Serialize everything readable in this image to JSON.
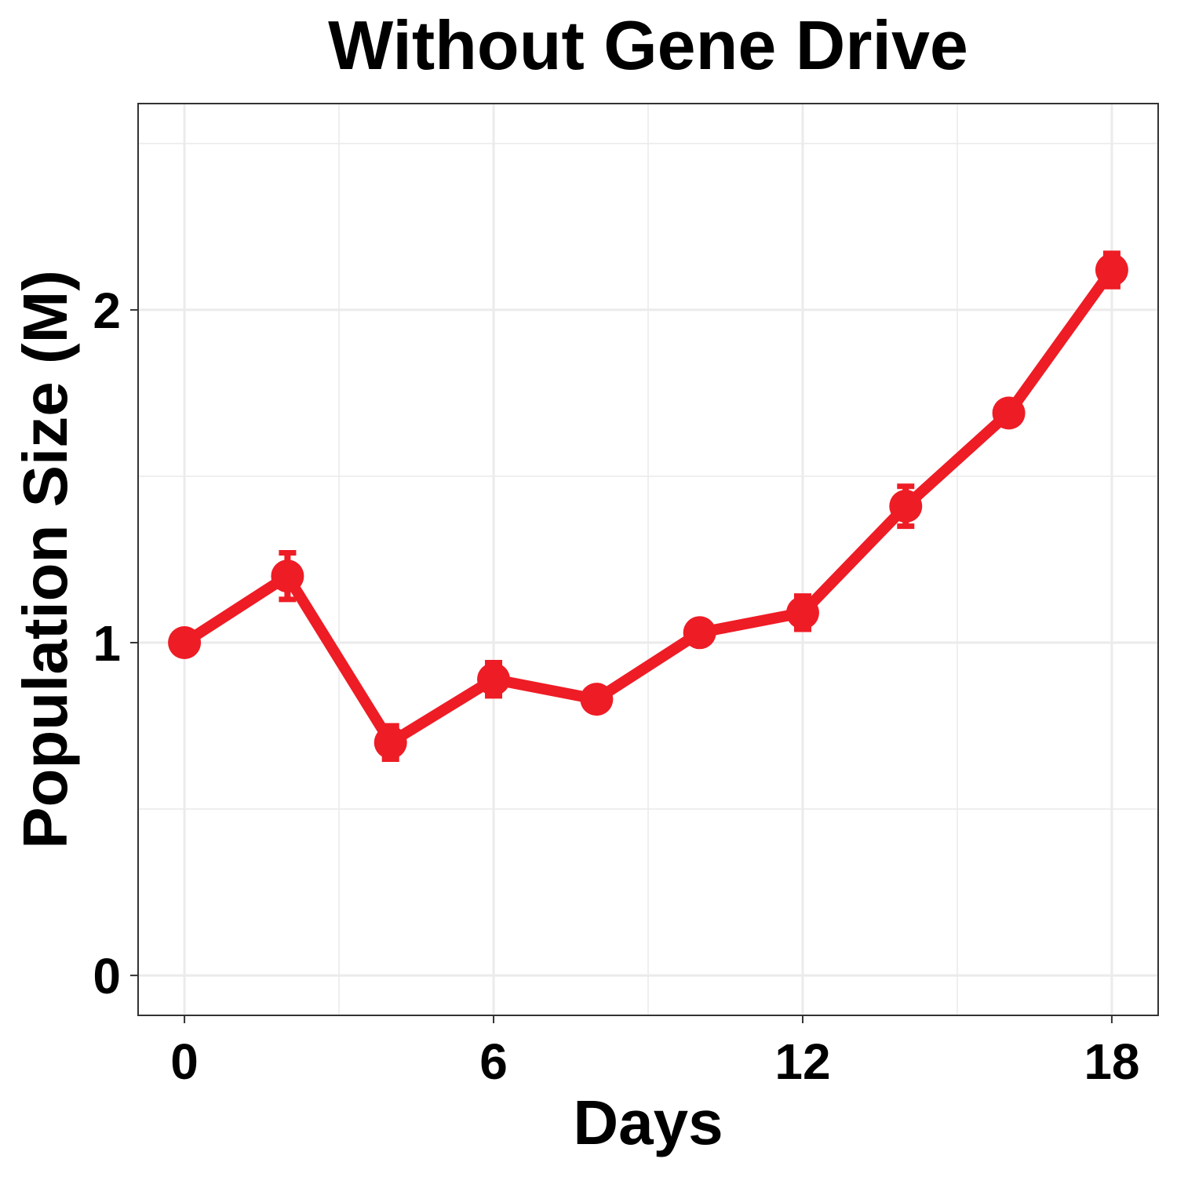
{
  "chart_data": {
    "type": "line",
    "title": "Without Gene Drive",
    "xlabel": "Days",
    "ylabel": "Population Size (M)",
    "xlim": [
      -0.9,
      18.9
    ],
    "ylim": [
      -0.12,
      2.62
    ],
    "x_ticks": [
      0,
      6,
      12,
      18
    ],
    "x_tick_labels": [
      "0",
      "6",
      "12",
      "18"
    ],
    "y_ticks": [
      0,
      1,
      2
    ],
    "y_tick_labels": [
      "0",
      "1",
      "2"
    ],
    "x_minor_ticks": [
      3,
      9,
      15
    ],
    "y_minor_ticks": [
      0.5,
      1.5,
      2.5
    ],
    "grid": true,
    "series": [
      {
        "name": "Without Gene Drive",
        "color": "#ee1c25",
        "x": [
          0,
          2,
          4,
          6,
          8,
          10,
          12,
          14,
          16,
          18
        ],
        "y": [
          1.0,
          1.2,
          0.7,
          0.89,
          0.83,
          1.03,
          1.09,
          1.41,
          1.69,
          2.12
        ],
        "error": [
          0.0,
          0.07,
          0.05,
          0.05,
          0.03,
          0.03,
          0.05,
          0.06,
          0.03,
          0.05
        ]
      }
    ]
  }
}
